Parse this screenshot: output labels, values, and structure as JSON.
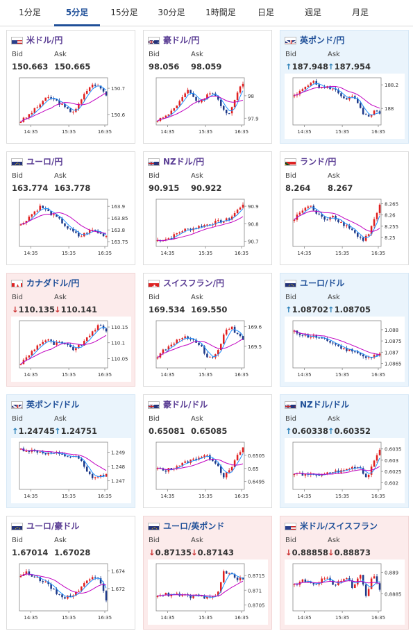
{
  "tabs": [
    {
      "label": "1分足",
      "active": false
    },
    {
      "label": "5分足",
      "active": true
    },
    {
      "label": "15分足",
      "active": false
    },
    {
      "label": "30分足",
      "active": false
    },
    {
      "label": "1時間足",
      "active": false
    },
    {
      "label": "日足",
      "active": false
    },
    {
      "label": "週足",
      "active": false
    },
    {
      "label": "月足",
      "active": false
    }
  ],
  "labels": {
    "bid": "Bid",
    "ask": "Ask"
  },
  "colors": {
    "candle_up": "#e02020",
    "candle_down": "#1e3a8a",
    "ma_short": "#1e90ff",
    "ma_long": "#c000c0",
    "accent": "#1f4f98"
  },
  "cards": [
    {
      "title": "米ドル/円",
      "flag": "us",
      "trend": "none",
      "bid": "150.663",
      "ask": "150.665"
    },
    {
      "title": "豪ドル/円",
      "flag": "au",
      "trend": "none",
      "bid": "98.056",
      "ask": "98.059"
    },
    {
      "title": "英ポンド/円",
      "flag": "gb",
      "trend": "up",
      "bid": "187.948",
      "ask": "187.954"
    },
    {
      "title": "ユーロ/円",
      "flag": "eu",
      "trend": "none",
      "bid": "163.774",
      "ask": "163.778"
    },
    {
      "title": "NZドル/円",
      "flag": "nz",
      "trend": "none",
      "bid": "90.915",
      "ask": "90.922"
    },
    {
      "title": "ランド/円",
      "flag": "za",
      "trend": "none",
      "bid": "8.264",
      "ask": "8.267"
    },
    {
      "title": "カナダドル/円",
      "flag": "ca",
      "trend": "down",
      "bid": "110.135",
      "ask": "110.141"
    },
    {
      "title": "スイスフラン/円",
      "flag": "ch",
      "trend": "none",
      "bid": "169.534",
      "ask": "169.550"
    },
    {
      "title": "ユーロ/ドル",
      "flag": "eu",
      "trend": "up",
      "bid": "1.08702",
      "ask": "1.08705"
    },
    {
      "title": "英ポンド/ドル",
      "flag": "gb",
      "trend": "up",
      "bid": "1.24745",
      "ask": "1.24751"
    },
    {
      "title": "豪ドル/ドル",
      "flag": "au",
      "trend": "none",
      "bid": "0.65081",
      "ask": "0.65085"
    },
    {
      "title": "NZドル/ドル",
      "flag": "nz",
      "trend": "up",
      "bid": "0.60338",
      "ask": "0.60352"
    },
    {
      "title": "ユーロ/豪ドル",
      "flag": "eu",
      "trend": "none",
      "bid": "1.67014",
      "ask": "1.67028"
    },
    {
      "title": "ユーロ/英ポンド",
      "flag": "eu",
      "trend": "down",
      "bid": "0.87135",
      "ask": "0.87143"
    },
    {
      "title": "米ドル/スイスフラン",
      "flag": "us",
      "trend": "down",
      "bid": "0.88858",
      "ask": "0.88873"
    }
  ],
  "chart_data": [
    {
      "type": "candlestick",
      "x_ticks": [
        "14:35",
        "15:35",
        "16:35"
      ],
      "y_ticks": [
        "150.7",
        "150.6"
      ],
      "y_range": [
        150.56,
        150.74
      ],
      "path": [
        150.575,
        150.59,
        150.61,
        150.63,
        150.655,
        150.665,
        150.655,
        150.64,
        150.62,
        150.61,
        150.63,
        150.67,
        150.705,
        150.715,
        150.7,
        150.675
      ]
    },
    {
      "type": "candlestick",
      "x_ticks": [
        "14:35",
        "15:35",
        "16:35"
      ],
      "y_ticks": [
        "98",
        "97.9"
      ],
      "y_range": [
        97.87,
        98.08
      ],
      "path": [
        97.895,
        97.9,
        97.915,
        97.94,
        97.965,
        97.995,
        98.02,
        98.0,
        97.97,
        97.985,
        98.005,
        98.01,
        97.99,
        97.94,
        97.915,
        97.95,
        98.02,
        98.06
      ]
    },
    {
      "type": "candlestick",
      "x_ticks": [
        "14:35",
        "15:35",
        "16:35"
      ],
      "y_ticks": [
        "188.2",
        "188"
      ],
      "y_range": [
        187.86,
        188.26
      ],
      "path": [
        188.1,
        188.14,
        188.19,
        188.23,
        188.2,
        188.17,
        188.18,
        188.16,
        188.12,
        188.08,
        188.1,
        188.06,
        187.95,
        187.92,
        187.98,
        187.95
      ]
    },
    {
      "type": "candlestick",
      "x_ticks": [
        "14:35",
        "15:35",
        "16:35"
      ],
      "y_ticks": [
        "163.9",
        "163.85",
        "163.8",
        "163.75"
      ],
      "y_range": [
        163.73,
        163.93
      ],
      "path": [
        163.82,
        163.85,
        163.875,
        163.9,
        163.88,
        163.86,
        163.84,
        163.81,
        163.79,
        163.77,
        163.79,
        163.8,
        163.785,
        163.775
      ]
    },
    {
      "type": "candlestick",
      "x_ticks": [
        "14:35",
        "15:35",
        "16:35"
      ],
      "y_ticks": [
        "90.9",
        "90.8",
        "90.7"
      ],
      "y_range": [
        90.67,
        90.94
      ],
      "path": [
        90.705,
        90.71,
        90.72,
        90.745,
        90.765,
        90.77,
        90.78,
        90.79,
        90.8,
        90.81,
        90.815,
        90.83,
        90.87,
        90.915
      ]
    },
    {
      "type": "candlestick",
      "x_ticks": [
        "14:35",
        "15:35",
        "16:35"
      ],
      "y_ticks": [
        "8.265",
        "8.26",
        "8.255",
        "8.25"
      ],
      "y_range": [
        8.246,
        8.267
      ],
      "path": [
        8.258,
        8.261,
        8.263,
        8.264,
        8.261,
        8.259,
        8.258,
        8.26,
        8.258,
        8.256,
        8.255,
        8.253,
        8.25,
        8.249,
        8.252,
        8.258,
        8.264
      ]
    },
    {
      "type": "candlestick",
      "x_ticks": [
        "14:35",
        "15:35",
        "16:35"
      ],
      "y_ticks": [
        "110.15",
        "110.1",
        "110.05"
      ],
      "y_range": [
        110.02,
        110.17
      ],
      "path": [
        110.035,
        110.055,
        110.08,
        110.1,
        110.11,
        110.095,
        110.1,
        110.09,
        110.08,
        110.09,
        110.11,
        110.14,
        110.155,
        110.135
      ]
    },
    {
      "type": "candlestick",
      "x_ticks": [
        "14:35",
        "15:35",
        "16:35"
      ],
      "y_ticks": [
        "169.6",
        "169.5"
      ],
      "y_range": [
        169.39,
        169.63
      ],
      "path": [
        169.45,
        169.48,
        169.5,
        169.52,
        169.55,
        169.54,
        169.53,
        169.51,
        169.45,
        169.44,
        169.48,
        169.58,
        169.6,
        169.56,
        169.535
      ]
    },
    {
      "type": "candlestick",
      "x_ticks": [
        "14:35",
        "15:35",
        "16:35"
      ],
      "y_ticks": [
        "1.088",
        "1.0875",
        "1.087",
        "1.0865"
      ],
      "y_range": [
        1.0863,
        1.0884
      ],
      "path": [
        1.0879,
        1.0878,
        1.0877,
        1.0877,
        1.0876,
        1.0875,
        1.0874,
        1.0872,
        1.0871,
        1.0871,
        1.0869,
        1.0867,
        1.0868,
        1.087
      ]
    },
    {
      "type": "candlestick",
      "x_ticks": [
        "14:35",
        "15:35",
        "16:35"
      ],
      "y_ticks": [
        "1.249",
        "1.248",
        "1.247"
      ],
      "y_range": [
        1.2464,
        1.2497
      ],
      "path": [
        1.2492,
        1.2491,
        1.2491,
        1.249,
        1.2489,
        1.2489,
        1.2488,
        1.2487,
        1.2487,
        1.2485,
        1.2476,
        1.2472,
        1.2473,
        1.2474
      ]
    },
    {
      "type": "candlestick",
      "x_ticks": [
        "14:35",
        "15:35",
        "16:35"
      ],
      "y_ticks": [
        "0.6505",
        "0.65",
        "0.6495"
      ],
      "y_range": [
        0.6492,
        0.651
      ],
      "path": [
        0.65,
        0.6499,
        0.65,
        0.6501,
        0.6502,
        0.6503,
        0.6504,
        0.6505,
        0.6504,
        0.6502,
        0.6497,
        0.6499,
        0.6504,
        0.6508
      ]
    },
    {
      "type": "candlestick",
      "x_ticks": [
        "14:35",
        "15:35",
        "16:35"
      ],
      "y_ticks": [
        "0.6035",
        "0.603",
        "0.6025",
        "0.602"
      ],
      "y_range": [
        0.6017,
        0.6038
      ],
      "path": [
        0.6024,
        0.6024,
        0.6023,
        0.6024,
        0.6023,
        0.6024,
        0.6025,
        0.6025,
        0.6026,
        0.6027,
        0.6027,
        0.6022,
        0.6028,
        0.6035
      ]
    },
    {
      "type": "candlestick",
      "x_ticks": [
        "14:35",
        "15:35",
        "16:35"
      ],
      "y_ticks": [
        "1.674",
        "1.672"
      ],
      "y_range": [
        1.6695,
        1.6748
      ],
      "path": [
        1.6735,
        1.6738,
        1.6734,
        1.673,
        1.6725,
        1.6718,
        1.6712,
        1.671,
        1.6714,
        1.672,
        1.6728,
        1.6735,
        1.6732,
        1.6705
      ]
    },
    {
      "type": "candlestick",
      "x_ticks": [
        "14:35",
        "15:35",
        "16:35"
      ],
      "y_ticks": [
        "0.8715",
        "0.871",
        "0.8705"
      ],
      "y_range": [
        0.8703,
        0.8719
      ],
      "path": [
        0.87085,
        0.87087,
        0.87083,
        0.87085,
        0.87082,
        0.87078,
        0.8708,
        0.87076,
        0.87075,
        0.8708,
        0.8716,
        0.87155,
        0.8714,
        0.87135
      ]
    },
    {
      "type": "candlestick",
      "x_ticks": [
        "14:35",
        "15:35",
        "16:35"
      ],
      "y_ticks": [
        "0.889",
        "0.8885"
      ],
      "y_range": [
        0.8881,
        0.8892
      ],
      "path": [
        0.8887,
        0.8888,
        0.8888,
        0.8887,
        0.8888,
        0.8889,
        0.8887,
        0.8888,
        0.8889,
        0.8886,
        0.889,
        0.8884,
        0.889,
        0.8886
      ]
    }
  ]
}
